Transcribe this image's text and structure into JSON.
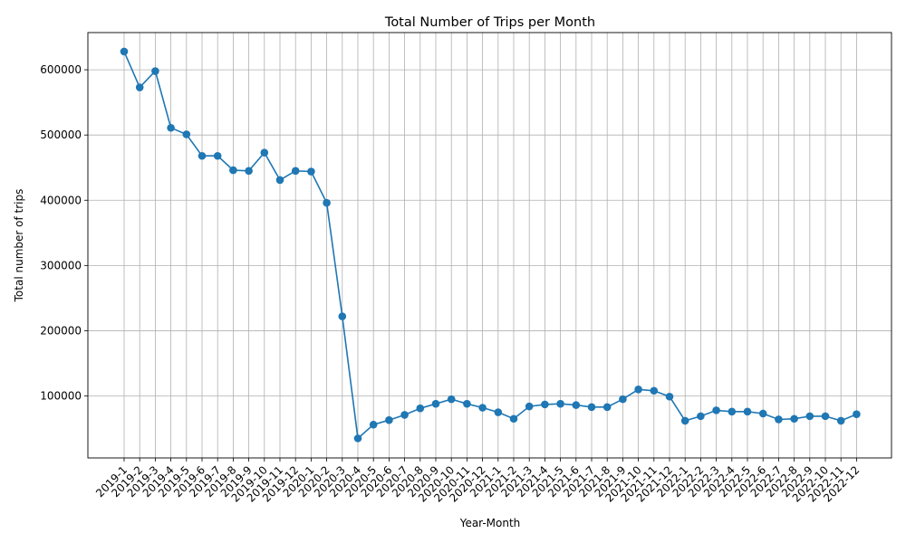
{
  "chart_data": {
    "type": "line",
    "title": "Total Number of Trips per Month",
    "xlabel": "Year-Month",
    "ylabel": "Total number of trips",
    "grid": true,
    "ylim": [
      5000,
      657000
    ],
    "yticks": [
      100000,
      200000,
      300000,
      400000,
      500000,
      600000
    ],
    "color": "#1f77b4",
    "categories": [
      "2019-1",
      "2019-2",
      "2019-3",
      "2019-4",
      "2019-5",
      "2019-6",
      "2019-7",
      "2019-8",
      "2019-9",
      "2019-10",
      "2019-11",
      "2019-12",
      "2020-1",
      "2020-2",
      "2020-3",
      "2020-4",
      "2020-5",
      "2020-6",
      "2020-7",
      "2020-8",
      "2020-9",
      "2020-10",
      "2020-11",
      "2020-12",
      "2021-1",
      "2021-2",
      "2021-3",
      "2021-4",
      "2021-5",
      "2021-6",
      "2021-7",
      "2021-8",
      "2021-9",
      "2021-10",
      "2021-11",
      "2021-12",
      "2022-1",
      "2022-2",
      "2022-3",
      "2022-4",
      "2022-5",
      "2022-6",
      "2022-7",
      "2022-8",
      "2022-9",
      "2022-10",
      "2022-11",
      "2022-12"
    ],
    "values": [
      628000,
      573000,
      598000,
      511000,
      501000,
      468000,
      468000,
      446000,
      445000,
      473000,
      431000,
      445000,
      444000,
      396000,
      222000,
      35000,
      56000,
      63000,
      71000,
      81000,
      88000,
      95000,
      88000,
      82000,
      75000,
      65000,
      84000,
      87000,
      88000,
      86000,
      83000,
      83000,
      95000,
      110000,
      108000,
      99000,
      62000,
      69000,
      78000,
      76000,
      76000,
      73000,
      64000,
      65000,
      69000,
      69000,
      62000,
      72000
    ]
  }
}
